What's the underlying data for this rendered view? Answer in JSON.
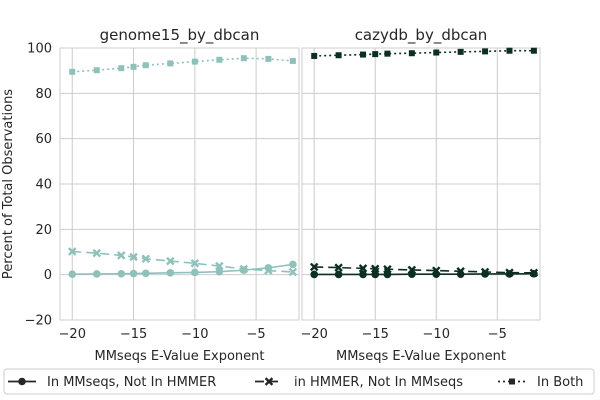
{
  "chart_data": {
    "type": "line",
    "ylabel": "Percent of Total Observations",
    "ylim": [
      -20,
      100
    ],
    "yticks": [
      -20,
      0,
      20,
      40,
      60,
      80,
      100
    ],
    "xticks": [
      -20,
      -15,
      -10,
      -5
    ],
    "grid": true,
    "legend": {
      "placement": "bottom",
      "entries": [
        {
          "label": "In MMseqs, Not In HMMER",
          "linestyle": "solid",
          "marker": "circle"
        },
        {
          "label": "in HMMER, Not In MMseqs",
          "linestyle": "dashed",
          "marker": "x"
        },
        {
          "label": "In Both",
          "linestyle": "dotted",
          "marker": "square"
        }
      ]
    },
    "panels": [
      {
        "title": "genome15_by_dbcan",
        "xlabel": "MMseqs E-Value Exponent",
        "xlim": [
          -21,
          -1.5
        ],
        "color": "#8fc1bb",
        "x": [
          -20,
          -18,
          -16,
          -15,
          -14,
          -12,
          -10,
          -8,
          -6,
          -4,
          -2
        ],
        "series": [
          {
            "name": "In MMseqs, Not In HMMER",
            "values": [
              0.2,
              0.3,
              0.4,
              0.5,
              0.6,
              0.8,
              1.0,
              1.3,
              2.0,
              3.0,
              4.5
            ]
          },
          {
            "name": "in HMMER, Not In MMseqs",
            "values": [
              10.2,
              9.5,
              8.5,
              7.8,
              7.0,
              6.0,
              5.0,
              3.8,
              2.5,
              1.8,
              1.2
            ]
          },
          {
            "name": "In Both",
            "values": [
              89.5,
              90.2,
              91.1,
              91.7,
              92.4,
              93.2,
              94.0,
              94.8,
              95.5,
              95.2,
              94.3
            ]
          }
        ]
      },
      {
        "title": "cazydb_by_dbcan",
        "xlabel": "MMseqs E-Value Exponent",
        "xlim": [
          -21,
          -1.5
        ],
        "color": "#0d2e25",
        "x": [
          -20,
          -18,
          -16,
          -15,
          -14,
          -12,
          -10,
          -8,
          -6,
          -4,
          -2
        ],
        "series": [
          {
            "name": "In MMseqs, Not In HMMER",
            "values": [
              0.1,
              0.1,
              0.1,
              0.1,
              0.1,
              0.2,
              0.2,
              0.2,
              0.3,
              0.3,
              0.4
            ]
          },
          {
            "name": "in HMMER, Not In MMseqs",
            "values": [
              3.4,
              3.1,
              2.8,
              2.6,
              2.4,
              2.1,
              1.8,
              1.5,
              1.2,
              0.9,
              0.8
            ]
          },
          {
            "name": "In Both",
            "values": [
              96.5,
              96.8,
              97.1,
              97.3,
              97.5,
              97.7,
              98.0,
              98.3,
              98.5,
              98.8,
              98.8
            ]
          }
        ]
      }
    ]
  }
}
